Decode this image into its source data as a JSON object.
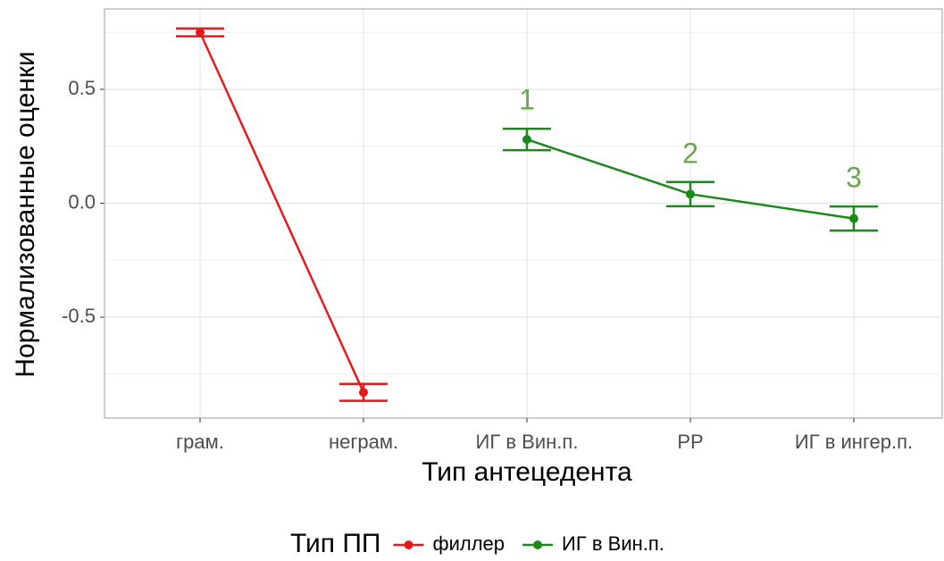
{
  "chart_data": {
    "type": "line",
    "x_label": "Тип антецедента",
    "y_label": "Нормализованные оценки",
    "categories": [
      "грам.",
      "неграм.",
      "ИГ в Вин.п.",
      "РР",
      "ИГ в ингер.п."
    ],
    "series": [
      {
        "name": "филлер",
        "color": "#e41a1c",
        "values": [
          0.75,
          -0.83,
          null,
          null,
          null
        ],
        "errors": [
          0.017,
          0.037,
          null,
          null,
          null
        ]
      },
      {
        "name": "ИГ в Вин.п.",
        "color": "#1a8a1a",
        "values": [
          null,
          null,
          0.28,
          0.04,
          -0.067
        ],
        "errors": [
          null,
          null,
          0.047,
          0.053,
          0.053
        ],
        "point_labels": [
          null,
          null,
          "1",
          "2",
          "3"
        ],
        "point_label_color": "#6aa84f"
      }
    ],
    "ylim": [
      -0.943,
      0.853
    ],
    "yticks": [
      0.5,
      {
        "value": 0,
        "label": "0.0"
      },
      -0.5
    ],
    "minor_yticks": [
      0.75,
      0.25,
      -0.25,
      -0.75
    ],
    "grid": true,
    "legend_title": "Тип ПП",
    "legend_position": "bottom"
  }
}
